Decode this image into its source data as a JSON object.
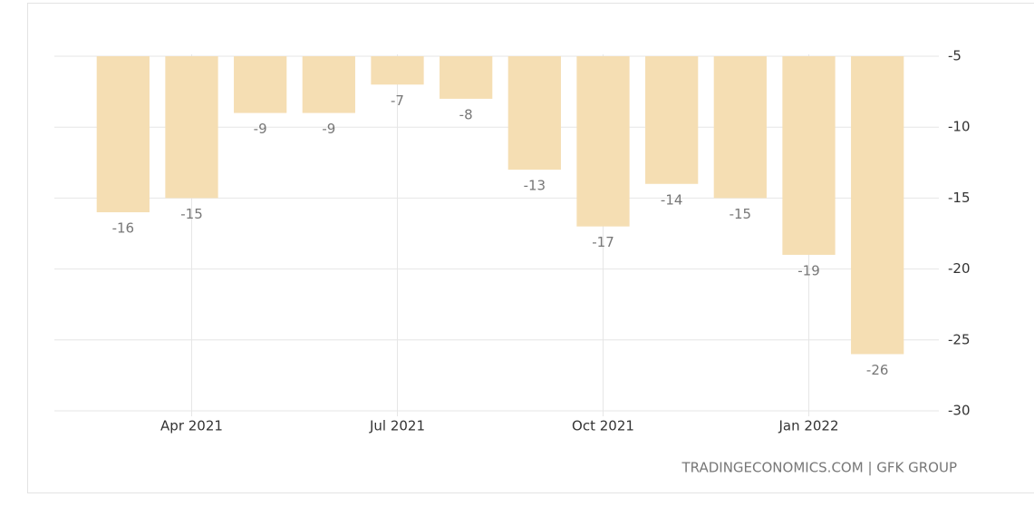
{
  "chart_data": {
    "type": "bar",
    "categories": [
      null,
      "Apr 2021",
      null,
      null,
      "Jul 2021",
      null,
      null,
      "Oct 2021",
      null,
      null,
      "Jan 2022",
      null
    ],
    "values": [
      -16,
      -15,
      -9,
      -9,
      -7,
      -8,
      -13,
      -17,
      -14,
      -15,
      -19,
      -26
    ],
    "color": "#f5deb3",
    "ylim": [
      -30,
      -5
    ],
    "yticks": [
      -5,
      -10,
      -15,
      -20,
      -25,
      -30
    ],
    "grid": true,
    "source": "TRADINGECONOMICS.COM | GFK GROUP"
  }
}
